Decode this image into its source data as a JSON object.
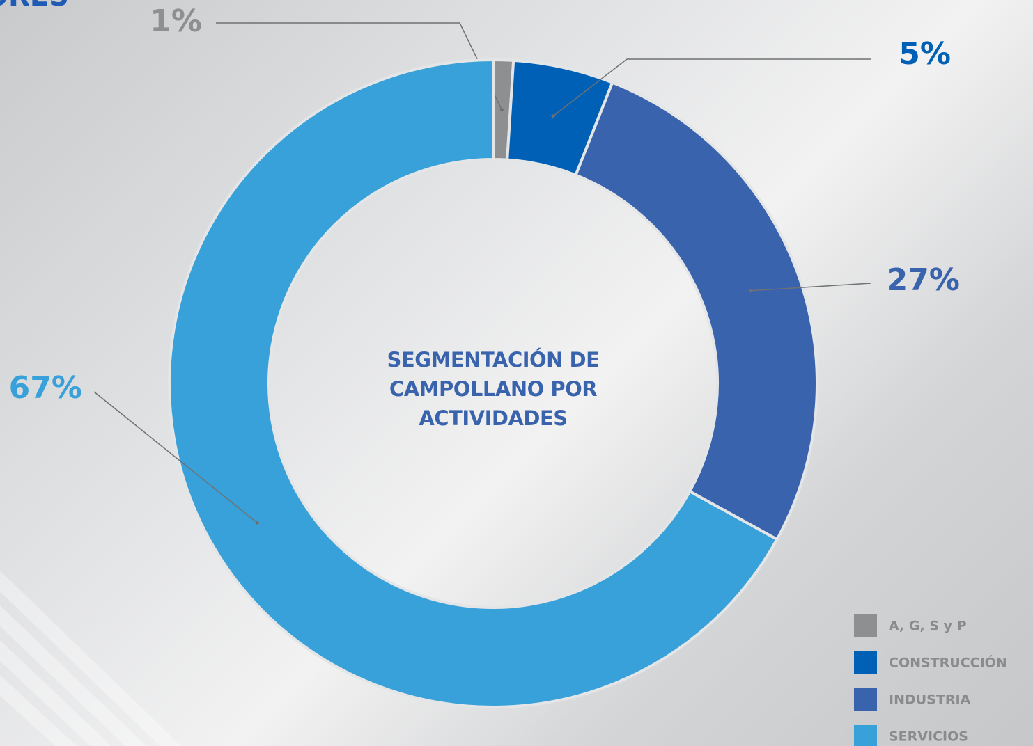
{
  "heading": "ORES",
  "chart_data": {
    "type": "donut",
    "title": "SEGMENTACIÓN DE CAMPOLLANO POR ACTIVIDADES",
    "categories": [
      "A, G, S y P",
      "CONSTRUCCIÓN",
      "INDUSTRIA",
      "SERVICIOS"
    ],
    "values": [
      1,
      5,
      27,
      67
    ],
    "value_labels": [
      "1%",
      "5%",
      "27%",
      "67%"
    ],
    "colors": [
      "#8e8f91",
      "#0060b6",
      "#3a63ae",
      "#38a1d9"
    ],
    "legend": "bottom-right"
  }
}
